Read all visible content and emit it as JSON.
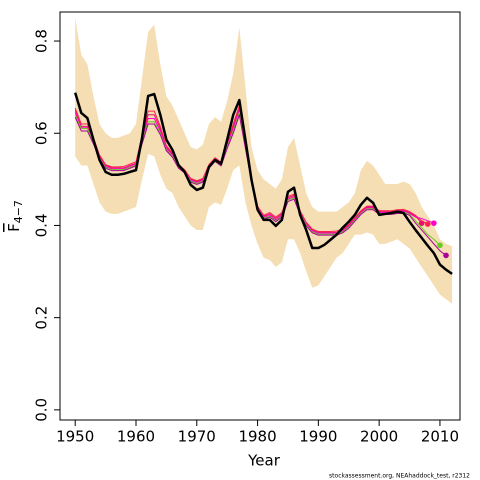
{
  "chart_data": {
    "type": "line",
    "xlabel": "Year",
    "ylabel": "F",
    "ylabel_subscript": "4−7",
    "footnote": "stockassessment.org, NEAhaddock_test, r2312",
    "x": [
      1950,
      1951,
      1952,
      1953,
      1954,
      1955,
      1956,
      1957,
      1958,
      1959,
      1960,
      1961,
      1962,
      1963,
      1964,
      1965,
      1966,
      1967,
      1968,
      1969,
      1970,
      1971,
      1972,
      1973,
      1974,
      1975,
      1976,
      1977,
      1978,
      1979,
      1980,
      1981,
      1982,
      1983,
      1984,
      1985,
      1986,
      1987,
      1988,
      1989,
      1990,
      1991,
      1992,
      1993,
      1994,
      1995,
      1996,
      1997,
      1998,
      1999,
      2000,
      2001,
      2002,
      2003,
      2004,
      2005,
      2006,
      2007,
      2008,
      2009,
      2010,
      2011,
      2012
    ],
    "band_color": "#f5deb3",
    "band_upper": [
      0.85,
      0.77,
      0.75,
      0.68,
      0.62,
      0.6,
      0.59,
      0.59,
      0.595,
      0.6,
      0.62,
      0.72,
      0.82,
      0.835,
      0.75,
      0.68,
      0.66,
      0.63,
      0.6,
      0.57,
      0.565,
      0.575,
      0.62,
      0.635,
      0.625,
      0.67,
      0.73,
      0.83,
      0.7,
      0.57,
      0.52,
      0.5,
      0.49,
      0.48,
      0.5,
      0.57,
      0.59,
      0.53,
      0.47,
      0.44,
      0.43,
      0.43,
      0.43,
      0.43,
      0.44,
      0.45,
      0.47,
      0.52,
      0.54,
      0.53,
      0.51,
      0.49,
      0.49,
      0.49,
      0.495,
      0.49,
      0.47,
      0.44,
      0.42,
      0.4,
      0.37,
      0.36,
      0.355
    ],
    "band_lower": [
      0.55,
      0.53,
      0.53,
      0.49,
      0.45,
      0.43,
      0.425,
      0.425,
      0.43,
      0.435,
      0.44,
      0.5,
      0.555,
      0.55,
      0.51,
      0.48,
      0.47,
      0.44,
      0.42,
      0.4,
      0.39,
      0.39,
      0.44,
      0.45,
      0.445,
      0.48,
      0.52,
      0.53,
      0.45,
      0.4,
      0.36,
      0.33,
      0.325,
      0.31,
      0.32,
      0.37,
      0.37,
      0.34,
      0.3,
      0.265,
      0.27,
      0.29,
      0.31,
      0.33,
      0.34,
      0.36,
      0.38,
      0.38,
      0.385,
      0.38,
      0.36,
      0.36,
      0.365,
      0.37,
      0.36,
      0.35,
      0.33,
      0.31,
      0.29,
      0.27,
      0.25,
      0.24,
      0.23
    ],
    "series": [
      {
        "color": "#e8106a",
        "width": 1,
        "end_dot": true,
        "values": [
          0.65,
          0.615,
          0.615,
          0.585,
          0.55,
          0.53,
          0.525,
          0.525,
          0.525,
          0.53,
          0.535,
          0.59,
          0.64,
          0.64,
          0.61,
          0.57,
          0.555,
          0.53,
          0.52,
          0.5,
          0.495,
          0.5,
          0.53,
          0.545,
          0.535,
          0.575,
          0.615,
          0.655,
          0.575,
          0.5,
          0.44,
          0.42,
          0.425,
          0.415,
          0.425,
          0.46,
          0.465,
          0.43,
          0.405,
          0.39,
          0.385,
          0.385,
          0.385,
          0.385,
          0.39,
          0.4,
          0.415,
          0.43,
          0.44,
          0.44,
          0.43,
          0.43,
          0.43,
          0.432,
          0.433,
          0.428,
          0.42,
          0.405,
          null,
          null,
          null,
          null,
          null
        ]
      },
      {
        "color": "#ff2050",
        "width": 1,
        "end_dot": true,
        "values": [
          0.655,
          0.62,
          0.62,
          0.59,
          0.553,
          0.532,
          0.527,
          0.527,
          0.528,
          0.533,
          0.538,
          0.595,
          0.648,
          0.648,
          0.615,
          0.573,
          0.557,
          0.532,
          0.521,
          0.502,
          0.497,
          0.502,
          0.532,
          0.547,
          0.537,
          0.578,
          0.62,
          0.66,
          0.578,
          0.502,
          0.442,
          0.422,
          0.428,
          0.418,
          0.428,
          0.463,
          0.468,
          0.432,
          0.407,
          0.392,
          0.387,
          0.387,
          0.387,
          0.388,
          0.392,
          0.402,
          0.417,
          0.432,
          0.442,
          0.442,
          0.432,
          0.432,
          0.432,
          0.434,
          0.435,
          0.43,
          0.422,
          0.41,
          0.403,
          null,
          null,
          null,
          null
        ]
      },
      {
        "color": "#ff00cc",
        "width": 1,
        "end_dot": true,
        "values": [
          0.645,
          0.612,
          0.612,
          0.582,
          0.548,
          0.528,
          0.523,
          0.523,
          0.523,
          0.528,
          0.533,
          0.585,
          0.632,
          0.632,
          0.605,
          0.567,
          0.553,
          0.528,
          0.518,
          0.498,
          0.493,
          0.498,
          0.528,
          0.543,
          0.533,
          0.572,
          0.61,
          0.65,
          0.572,
          0.498,
          0.438,
          0.418,
          0.422,
          0.412,
          0.422,
          0.457,
          0.462,
          0.428,
          0.403,
          0.388,
          0.383,
          0.383,
          0.383,
          0.383,
          0.388,
          0.398,
          0.413,
          0.428,
          0.438,
          0.438,
          0.428,
          0.428,
          0.428,
          0.43,
          0.431,
          0.426,
          0.418,
          0.415,
          0.41,
          0.405,
          null,
          null,
          null
        ]
      },
      {
        "color": "#66cc22",
        "width": 1,
        "end_dot": true,
        "values": [
          0.64,
          0.61,
          0.61,
          0.58,
          0.546,
          0.526,
          0.521,
          0.521,
          0.521,
          0.526,
          0.531,
          0.58,
          0.625,
          0.625,
          0.6,
          0.564,
          0.55,
          0.526,
          0.516,
          0.496,
          0.491,
          0.496,
          0.526,
          0.541,
          0.531,
          0.57,
          0.605,
          0.645,
          0.57,
          0.496,
          0.436,
          0.416,
          0.42,
          0.41,
          0.42,
          0.455,
          0.46,
          0.426,
          0.401,
          0.386,
          0.381,
          0.381,
          0.381,
          0.381,
          0.386,
          0.396,
          0.411,
          0.426,
          0.436,
          0.436,
          0.426,
          0.426,
          0.426,
          0.428,
          0.429,
          0.424,
          0.41,
          0.395,
          0.38,
          0.37,
          0.357,
          null,
          null
        ]
      },
      {
        "color": "#aa0099",
        "width": 1,
        "end_dot": true,
        "values": [
          0.635,
          0.605,
          0.605,
          0.577,
          0.544,
          0.524,
          0.519,
          0.519,
          0.519,
          0.524,
          0.529,
          0.577,
          0.62,
          0.62,
          0.597,
          0.562,
          0.548,
          0.524,
          0.514,
          0.494,
          0.489,
          0.494,
          0.524,
          0.539,
          0.529,
          0.567,
          0.6,
          0.64,
          0.567,
          0.494,
          0.434,
          0.414,
          0.418,
          0.408,
          0.418,
          0.452,
          0.457,
          0.424,
          0.399,
          0.384,
          0.379,
          0.379,
          0.379,
          0.379,
          0.384,
          0.394,
          0.409,
          0.424,
          0.434,
          0.434,
          0.424,
          0.424,
          0.424,
          0.426,
          0.427,
          0.422,
          0.405,
          0.39,
          0.375,
          0.36,
          0.345,
          0.335,
          null
        ]
      },
      {
        "color": "#000000",
        "width": 2.5,
        "end_dot": false,
        "values": [
          0.688,
          0.644,
          0.633,
          0.586,
          0.542,
          0.516,
          0.51,
          0.51,
          0.512,
          0.516,
          0.52,
          0.59,
          0.681,
          0.685,
          0.64,
          0.586,
          0.564,
          0.531,
          0.516,
          0.488,
          0.477,
          0.482,
          0.527,
          0.542,
          0.534,
          0.586,
          0.64,
          0.672,
          0.586,
          0.499,
          0.434,
          0.412,
          0.412,
          0.399,
          0.412,
          0.473,
          0.482,
          0.423,
          0.39,
          0.351,
          0.351,
          0.358,
          0.369,
          0.38,
          0.395,
          0.408,
          0.423,
          0.445,
          0.46,
          0.449,
          0.423,
          0.425,
          0.427,
          0.43,
          0.427,
          0.408,
          0.39,
          0.373,
          0.356,
          0.34,
          0.315,
          0.304,
          0.295
        ]
      }
    ],
    "xlim": [
      1947.5,
      2013.3
    ],
    "ylim": [
      -0.022,
      0.863
    ],
    "xticks": [
      1950,
      1960,
      1970,
      1980,
      1990,
      2000,
      2010
    ],
    "yticks": [
      {
        "value": 0,
        "label": "0.0"
      },
      0.2,
      0.4,
      0.6,
      0.8
    ]
  }
}
